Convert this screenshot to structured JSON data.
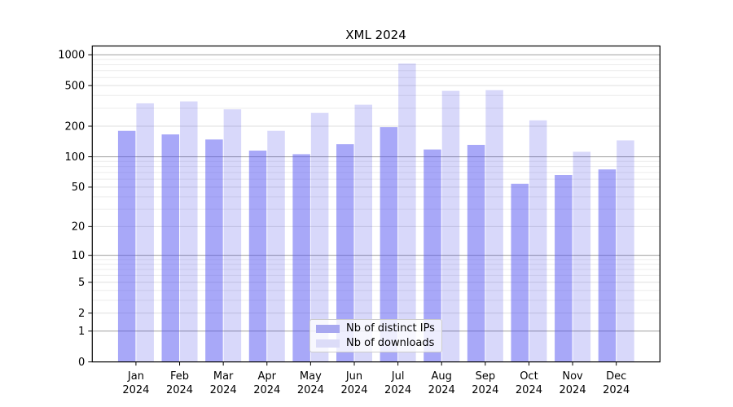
{
  "title": {
    "text": "XML 2024"
  },
  "legend": {
    "items": [
      {
        "label": "Nb of distinct IPs",
        "swatch_color": "#a8a8f0"
      },
      {
        "label": "Nb of downloads",
        "swatch_color": "#dcdcf8"
      }
    ]
  },
  "y_axis": {
    "tick_labels": [
      "1000",
      "500",
      "200",
      "100",
      "50",
      "20",
      "10",
      "5",
      "2",
      "1",
      "0"
    ]
  },
  "x_axis": {
    "months": [
      "Jan",
      "Feb",
      "Mar",
      "Apr",
      "May",
      "Jun",
      "Jul",
      "Aug",
      "Sep",
      "Oct",
      "Nov",
      "Dec"
    ],
    "year": "2024"
  },
  "colors": {
    "bar_distinct_ips": "rgba(81,81,241,0.5)",
    "bar_downloads": "rgba(38,38,228,0.18)",
    "grid_power10": "#a0a0a0",
    "grid_major": "#dfdfdf",
    "grid_minor": "#ececec",
    "axis_frame": "#000000",
    "tick_text": "#000000",
    "legend_border": "#cccccc",
    "legend_background": "rgba(255,255,255,0.8)"
  },
  "chart_data": {
    "type": "bar",
    "title": "XML 2024",
    "categories": [
      "Jan 2024",
      "Feb 2024",
      "Mar 2024",
      "Apr 2024",
      "May 2024",
      "Jun 2024",
      "Jul 2024",
      "Aug 2024",
      "Sep 2024",
      "Oct 2024",
      "Nov 2024",
      "Dec 2024"
    ],
    "series": [
      {
        "name": "Nb of distinct IPs",
        "values": [
          180,
          166,
          148,
          115,
          106,
          133,
          196,
          118,
          131,
          54,
          66,
          75
        ]
      },
      {
        "name": "Nb of downloads",
        "values": [
          335,
          350,
          293,
          180,
          270,
          325,
          823,
          444,
          451,
          228,
          112,
          145
        ]
      }
    ],
    "yscale": "log10(value+1)",
    "yticks": [
      0,
      1,
      2,
      5,
      10,
      20,
      50,
      100,
      200,
      500,
      1000
    ],
    "ylim": [
      0,
      1220
    ],
    "grid": true,
    "legend_position": "lower-center-inside"
  }
}
